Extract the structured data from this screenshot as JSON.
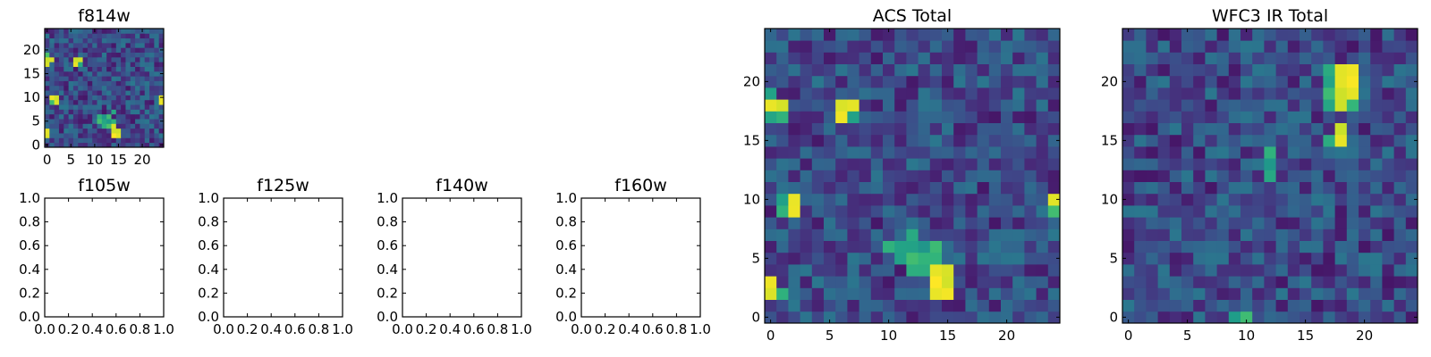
{
  "colormap": "viridis",
  "chart_data": [
    {
      "type": "heatmap",
      "title": "f814w",
      "xlim": [
        -0.5,
        24.5
      ],
      "ylim": [
        -0.5,
        24.5
      ],
      "xticks": [
        0,
        5,
        10,
        15,
        20
      ],
      "yticks": [
        0,
        5,
        10,
        15,
        20
      ],
      "tick_labels_x": [
        "0",
        "5",
        "10",
        "15",
        "20"
      ],
      "tick_labels_y": [
        "0",
        "5",
        "10",
        "15",
        "20"
      ],
      "grid_size": [
        25,
        25
      ],
      "bright_pixels": [
        [
          0,
          18
        ],
        [
          0,
          17
        ],
        [
          1,
          18
        ],
        [
          6,
          18
        ],
        [
          7,
          18
        ],
        [
          6,
          17
        ],
        [
          1,
          10
        ],
        [
          2,
          10
        ],
        [
          2,
          9
        ],
        [
          0,
          2
        ],
        [
          0,
          3
        ],
        [
          14,
          2
        ],
        [
          14,
          3
        ],
        [
          15,
          2
        ],
        [
          15,
          3
        ],
        [
          14,
          4
        ],
        [
          24,
          10
        ],
        [
          24,
          9
        ]
      ],
      "medium_pixels": [
        [
          7,
          17
        ],
        [
          1,
          9
        ],
        [
          0,
          17
        ],
        [
          12,
          5
        ],
        [
          13,
          5
        ],
        [
          13,
          6
        ],
        [
          12,
          6
        ],
        [
          11,
          6
        ],
        [
          14,
          7
        ],
        [
          13,
          4
        ],
        [
          12,
          4
        ],
        [
          14,
          5
        ],
        [
          11,
          5
        ],
        [
          0,
          19
        ]
      ]
    },
    {
      "type": "heatmap",
      "title": "f105w",
      "xlim": [
        0,
        1
      ],
      "ylim": [
        0,
        1
      ],
      "tick_labels_x": [
        "0.0",
        "0.2",
        "0.4",
        "0.6",
        "0.8",
        "1.0"
      ],
      "tick_labels_y": [
        "0.0",
        "0.2",
        "0.4",
        "0.6",
        "0.8",
        "1.0"
      ],
      "empty": true
    },
    {
      "type": "heatmap",
      "title": "f125w",
      "xlim": [
        0,
        1
      ],
      "ylim": [
        0,
        1
      ],
      "tick_labels_x": [
        "0.0",
        "0.2",
        "0.4",
        "0.6",
        "0.8",
        "1.0"
      ],
      "tick_labels_y": [
        "0.0",
        "0.2",
        "0.4",
        "0.6",
        "0.8",
        "1.0"
      ],
      "empty": true
    },
    {
      "type": "heatmap",
      "title": "f140w",
      "xlim": [
        0,
        1
      ],
      "ylim": [
        0,
        1
      ],
      "tick_labels_x": [
        "0.0",
        "0.2",
        "0.4",
        "0.6",
        "0.8",
        "1.0"
      ],
      "tick_labels_y": [
        "0.0",
        "0.2",
        "0.4",
        "0.6",
        "0.8",
        "1.0"
      ],
      "empty": true
    },
    {
      "type": "heatmap",
      "title": "f160w",
      "xlim": [
        0,
        1
      ],
      "ylim": [
        0,
        1
      ],
      "tick_labels_x": [
        "0.0",
        "0.2",
        "0.4",
        "0.6",
        "0.8",
        "1.0"
      ],
      "tick_labels_y": [
        "0.0",
        "0.2",
        "0.4",
        "0.6",
        "0.8",
        "1.0"
      ],
      "empty": true
    },
    {
      "type": "heatmap",
      "title": "ACS Total",
      "xlim": [
        -0.5,
        24.5
      ],
      "ylim": [
        -0.5,
        24.5
      ],
      "xticks": [
        0,
        5,
        10,
        15,
        20
      ],
      "yticks": [
        0,
        5,
        10,
        15,
        20
      ],
      "tick_labels_x": [
        "0",
        "5",
        "10",
        "15",
        "20"
      ],
      "tick_labels_y": [
        "0",
        "5",
        "10",
        "15",
        "20"
      ],
      "grid_size": [
        25,
        25
      ],
      "bright_pixels": [
        [
          0,
          18
        ],
        [
          1,
          18
        ],
        [
          6,
          18
        ],
        [
          7,
          18
        ],
        [
          6,
          17
        ],
        [
          2,
          10
        ],
        [
          2,
          9
        ],
        [
          0,
          2
        ],
        [
          0,
          3
        ],
        [
          14,
          2
        ],
        [
          14,
          3
        ],
        [
          15,
          2
        ],
        [
          15,
          3
        ],
        [
          14,
          4
        ],
        [
          15,
          4
        ],
        [
          24,
          10
        ]
      ],
      "medium_pixels": [
        [
          0,
          17
        ],
        [
          1,
          17
        ],
        [
          0,
          19
        ],
        [
          7,
          17
        ],
        [
          1,
          10
        ],
        [
          1,
          9
        ],
        [
          1,
          2
        ],
        [
          12,
          6
        ],
        [
          13,
          6
        ],
        [
          13,
          5
        ],
        [
          12,
          5
        ],
        [
          11,
          6
        ],
        [
          13,
          4
        ],
        [
          12,
          4
        ],
        [
          14,
          5
        ],
        [
          11,
          5
        ],
        [
          10,
          6
        ],
        [
          24,
          9
        ],
        [
          12,
          7
        ],
        [
          14,
          6
        ]
      ]
    },
    {
      "type": "heatmap",
      "title": "WFC3 IR Total",
      "xlim": [
        -0.5,
        24.5
      ],
      "ylim": [
        -0.5,
        24.5
      ],
      "xticks": [
        0,
        5,
        10,
        15,
        20
      ],
      "yticks": [
        0,
        5,
        10,
        15,
        20
      ],
      "tick_labels_x": [
        "0",
        "5",
        "10",
        "15",
        "20"
      ],
      "tick_labels_y": [
        "0",
        "5",
        "10",
        "15",
        "20"
      ],
      "grid_size": [
        25,
        25
      ],
      "bright_pixels": [
        [
          18,
          21
        ],
        [
          19,
          21
        ],
        [
          18,
          20
        ],
        [
          19,
          20
        ],
        [
          18,
          19
        ],
        [
          18,
          18
        ],
        [
          19,
          19
        ],
        [
          18,
          16
        ],
        [
          18,
          15
        ]
      ],
      "medium_pixels": [
        [
          17,
          21
        ],
        [
          17,
          20
        ],
        [
          17,
          19
        ],
        [
          17,
          18
        ],
        [
          19,
          18
        ],
        [
          17,
          15
        ],
        [
          12,
          12
        ],
        [
          12,
          13
        ],
        [
          9,
          0
        ],
        [
          10,
          0
        ],
        [
          12,
          14
        ]
      ]
    }
  ]
}
